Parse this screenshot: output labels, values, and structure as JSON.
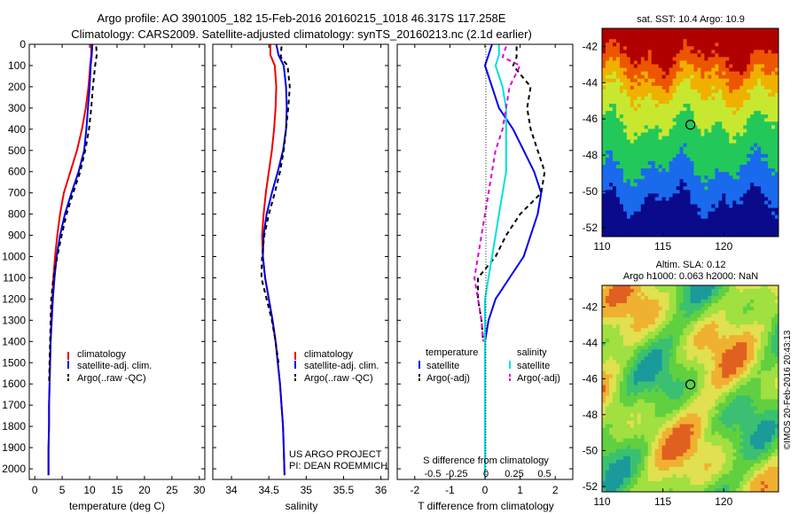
{
  "header": {
    "line1": "Argo profile: AO 3901005_182 15-Feb-2016 20160215_1018 46.317S 117.258E",
    "line2": "Climatology: CARS2009. Satellite-adjusted climatology: synTS_20160213.nc (2.1d earlier)"
  },
  "chart_data": [
    {
      "id": "temperature",
      "type": "line",
      "xlabel": "temperature (deg C)",
      "ylabel": "",
      "xlim": [
        -1,
        31
      ],
      "ylim": [
        2050,
        0
      ],
      "xticks": [
        0,
        5,
        10,
        15,
        20,
        25,
        30
      ],
      "yticks": [
        0,
        100,
        200,
        300,
        400,
        500,
        600,
        700,
        800,
        900,
        1000,
        1100,
        1200,
        1300,
        1400,
        1500,
        1600,
        1700,
        1800,
        1900,
        2000
      ],
      "legend_position": "bottom-right",
      "series": [
        {
          "name": "climatology",
          "color": "#ee0000",
          "dash": "",
          "x": [
            10.3,
            10.3,
            10.1,
            9.8,
            9.3,
            8.6,
            7.7,
            6.5,
            5.3,
            4.6,
            4.1,
            3.7,
            3.4,
            3.2,
            3.0,
            2.9,
            2.8,
            2.7,
            2.6,
            2.6,
            2.5,
            2.5
          ],
          "y": [
            0,
            50,
            100,
            200,
            300,
            400,
            500,
            600,
            700,
            800,
            900,
            1000,
            1100,
            1200,
            1300,
            1400,
            1500,
            1600,
            1700,
            1800,
            1900,
            2030
          ]
        },
        {
          "name": "satellite-adj. clim.",
          "color": "#0000ee",
          "dash": "",
          "x": [
            10.5,
            10.4,
            10.2,
            10.0,
            9.7,
            9.4,
            9.0,
            8.0,
            6.7,
            5.5,
            4.6,
            4.0,
            3.6,
            3.3,
            3.1,
            2.9,
            2.8,
            2.7,
            2.6,
            2.6,
            2.5,
            2.5
          ],
          "y": [
            0,
            50,
            100,
            200,
            300,
            400,
            500,
            600,
            700,
            800,
            900,
            1000,
            1100,
            1200,
            1300,
            1400,
            1500,
            1600,
            1700,
            1800,
            1900,
            2030
          ]
        },
        {
          "name": "Argo(..raw -QC)",
          "color": "#000000",
          "dash": "5,4",
          "x": [
            11.2,
            11.3,
            11.0,
            10.6,
            10.3,
            9.9,
            9.2,
            8.3,
            7.0,
            5.8,
            4.9,
            4.1,
            3.4,
            3.0,
            2.9,
            2.8,
            2.7,
            2.6
          ],
          "y": [
            10,
            50,
            100,
            200,
            300,
            400,
            500,
            600,
            700,
            800,
            900,
            1000,
            1100,
            1200,
            1300,
            1400,
            1500,
            1600
          ]
        }
      ]
    },
    {
      "id": "salinity",
      "type": "line",
      "xlabel": "salinity",
      "ylabel": "",
      "xlim": [
        33.75,
        36.1
      ],
      "ylim": [
        2050,
        0
      ],
      "xticks": [
        34,
        34.5,
        35,
        35.5,
        36
      ],
      "legend_position": "bottom-right",
      "series": [
        {
          "name": "climatology",
          "color": "#ee0000",
          "dash": "",
          "x": [
            34.52,
            34.52,
            34.58,
            34.6,
            34.59,
            34.57,
            34.54,
            34.5,
            34.46,
            34.43,
            34.41,
            34.42,
            34.45,
            34.5,
            34.55,
            34.59,
            34.62,
            34.65,
            34.67,
            34.69,
            34.7,
            34.71
          ],
          "y": [
            0,
            50,
            100,
            200,
            300,
            400,
            500,
            600,
            700,
            800,
            900,
            1000,
            1100,
            1200,
            1300,
            1400,
            1500,
            1600,
            1700,
            1800,
            1900,
            2030
          ]
        },
        {
          "name": "satellite-adj. clim.",
          "color": "#0000ee",
          "dash": "",
          "x": [
            34.6,
            34.63,
            34.7,
            34.73,
            34.74,
            34.73,
            34.69,
            34.62,
            34.54,
            34.47,
            34.43,
            34.42,
            34.45,
            34.5,
            34.55,
            34.59,
            34.62,
            34.65,
            34.67,
            34.69,
            34.7,
            34.71
          ],
          "y": [
            0,
            50,
            100,
            200,
            300,
            400,
            500,
            600,
            700,
            800,
            900,
            1000,
            1100,
            1200,
            1300,
            1400,
            1500,
            1600,
            1700,
            1800,
            1900,
            2030
          ]
        },
        {
          "name": "Argo(..raw -QC)",
          "color": "#000000",
          "dash": "5,4",
          "x": [
            34.67,
            34.66,
            34.75,
            34.78,
            34.76,
            34.73,
            34.7,
            34.65,
            34.58,
            34.5,
            34.44,
            34.41,
            34.4,
            34.47,
            34.54,
            34.59,
            34.63
          ],
          "y": [
            10,
            60,
            100,
            200,
            300,
            400,
            500,
            600,
            700,
            800,
            900,
            1000,
            1100,
            1200,
            1300,
            1400,
            1500
          ]
        }
      ]
    },
    {
      "id": "difference",
      "type": "line",
      "xlabel": "T difference from climatology",
      "xlabel_top": "S difference from climatology",
      "ylabel": "",
      "xlim": [
        -2.5,
        2.5
      ],
      "ylim": [
        2050,
        0
      ],
      "xticks": [
        -2,
        -1,
        0,
        1,
        2
      ],
      "xtick_labels": [
        "-2",
        "-1",
        "0",
        "1",
        "2"
      ],
      "s_xticks_labels": [
        "-0.5",
        "-0.25",
        "0",
        "0.25",
        "0.5"
      ],
      "legend_position": "bottom-center",
      "legend_headers": [
        "temperature",
        "salinity"
      ],
      "series": [
        {
          "name": "satellite",
          "group": "temperature",
          "color": "#0000ee",
          "dash": "",
          "x": [
            0.2,
            0.1,
            0.0,
            0.2,
            0.4,
            0.8,
            1.1,
            1.4,
            1.6,
            1.5,
            1.3,
            1.1,
            0.7,
            0.3,
            0.1,
            0.0,
            0.0,
            0.0,
            0.0,
            0.0,
            0.0,
            0.0
          ],
          "y": [
            0,
            50,
            100,
            200,
            300,
            400,
            500,
            600,
            700,
            800,
            900,
            1000,
            1100,
            1200,
            1300,
            1400,
            1500,
            1600,
            1700,
            1800,
            1900,
            2030
          ]
        },
        {
          "name": "Argo(-adj)",
          "group": "temperature",
          "color": "#000000",
          "dash": "5,4",
          "x": [
            0.9,
            0.9,
            0.8,
            1.3,
            1.2,
            1.3,
            1.5,
            1.7,
            1.6,
            1.0,
            0.6,
            0.3,
            -0.2,
            -0.2,
            -0.1,
            -0.05
          ],
          "y": [
            10,
            60,
            100,
            200,
            300,
            400,
            500,
            600,
            700,
            800,
            900,
            1000,
            1100,
            1200,
            1300,
            1400
          ]
        },
        {
          "name": "satellite",
          "group": "salinity",
          "color": "#00e0e0",
          "dash": "",
          "x": [
            0.4,
            0.4,
            0.3,
            0.5,
            0.6,
            0.6,
            0.6,
            0.6,
            0.5,
            0.4,
            0.3,
            0.2,
            0.1,
            0.0,
            0.0,
            0.0,
            0.0,
            0.0,
            0.0,
            0.0,
            0.0,
            0.0
          ],
          "y": [
            0,
            50,
            100,
            200,
            300,
            400,
            500,
            600,
            700,
            800,
            900,
            1000,
            1100,
            1200,
            1300,
            1400,
            1500,
            1600,
            1700,
            1800,
            1900,
            2030
          ]
        },
        {
          "name": "Argo(-adj)",
          "group": "salinity",
          "color": "#dd00dd",
          "dash": "5,4",
          "x": [
            0.6,
            0.5,
            1.0,
            0.7,
            0.6,
            0.5,
            0.3,
            0.2,
            0.1,
            0.0,
            -0.1,
            -0.2,
            -0.3,
            -0.2,
            -0.1,
            -0.05
          ],
          "y": [
            10,
            60,
            100,
            200,
            300,
            400,
            500,
            600,
            700,
            800,
            900,
            1000,
            1100,
            1200,
            1300,
            1400
          ]
        }
      ]
    },
    {
      "id": "sst-map",
      "type": "heatmap",
      "title": "sat. SST: 10.4  Argo: 10.9",
      "xlim": [
        110,
        124.5
      ],
      "ylim": [
        -52.5,
        -41
      ],
      "xticks": [
        110,
        115,
        120
      ],
      "yticks": [
        -42,
        -44,
        -46,
        -48,
        -50,
        -52
      ],
      "colors": [
        "#0a0a8a",
        "#1a6aee",
        "#22c85a",
        "#c8e830",
        "#f0b000",
        "#ee5500",
        "#b00000"
      ],
      "marker": {
        "lon": 117.26,
        "lat": -46.32
      }
    },
    {
      "id": "sla-map",
      "type": "heatmap",
      "title": "Altim. SLA: 0.12",
      "subtitle": "Argo h1000: 0.063 h2000: NaN",
      "xlim": [
        110,
        124.5
      ],
      "ylim": [
        -52.3,
        -40.8
      ],
      "xticks": [
        110,
        115,
        120
      ],
      "yticks": [
        -42,
        -44,
        -46,
        -48,
        -50,
        -52
      ],
      "colors": [
        "#1a9a9a",
        "#3ac070",
        "#60d040",
        "#a0e040",
        "#e0e050",
        "#f0b030",
        "#e06020"
      ],
      "marker": {
        "lon": 117.26,
        "lat": -46.32
      }
    }
  ],
  "panel_text": {
    "project": "US ARGO PROJECT",
    "pi": "PI: DEAN ROEMMICH",
    "credit": "©IMOS 20-Feb-2016 20:43:13"
  }
}
